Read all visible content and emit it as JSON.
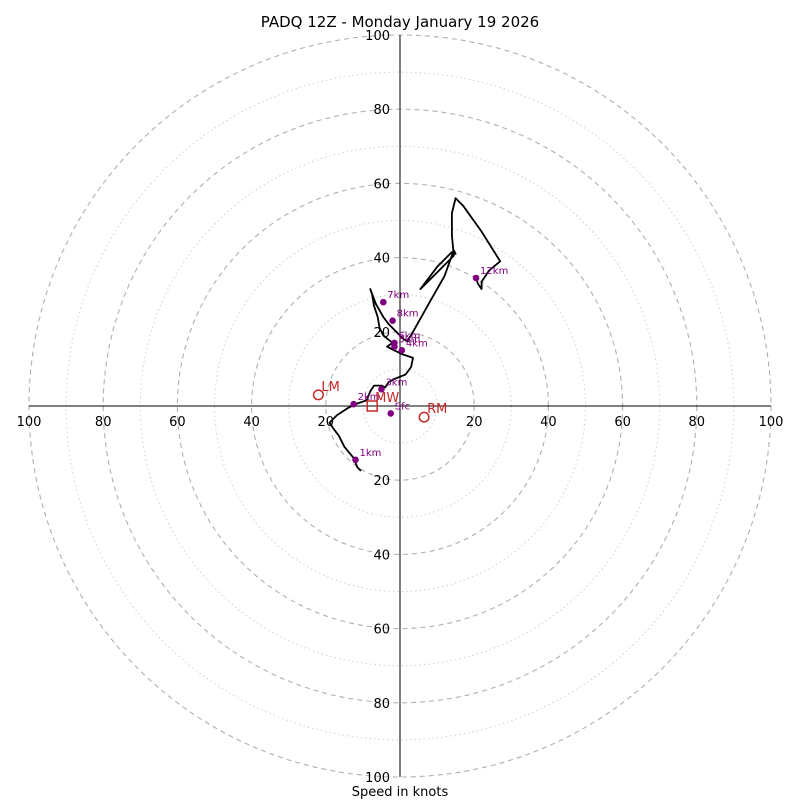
{
  "chart_data": {
    "type": "hodograph",
    "title": "PADQ 12Z - Monday January 19 2026",
    "xlabel": "Speed in knots",
    "units": "knots",
    "max_speed": 100,
    "ring_dashed": [
      20,
      40,
      60,
      80,
      100
    ],
    "ring_dotted": [
      10,
      30,
      50,
      70,
      90
    ],
    "ticks_right": [
      "20",
      "40",
      "60",
      "80",
      "100"
    ],
    "ticks_left": [
      "20",
      "40",
      "60",
      "80",
      "100"
    ],
    "ticks_up": [
      "20",
      "40",
      "60",
      "80",
      "100"
    ],
    "ticks_down": [
      "20",
      "40",
      "60",
      "80",
      "100"
    ],
    "trace": [
      [
        -10.5,
        -17.5
      ],
      [
        -11.5,
        -16.5
      ],
      [
        -12.5,
        -14
      ],
      [
        -15,
        -11
      ],
      [
        -16.5,
        -8
      ],
      [
        -18,
        -6
      ],
      [
        -19,
        -4.5
      ],
      [
        -17,
        -2.5
      ],
      [
        -14,
        -0.5
      ],
      [
        -12,
        0.5
      ],
      [
        -9,
        1.5
      ],
      [
        -8,
        4
      ],
      [
        -7,
        5.5
      ],
      [
        -5,
        5.5
      ],
      [
        -4,
        5
      ],
      [
        -3,
        6.5
      ],
      [
        -1,
        7.5
      ],
      [
        1.5,
        8.5
      ],
      [
        3,
        10.5
      ],
      [
        3.5,
        13
      ],
      [
        0.5,
        14
      ],
      [
        -1.5,
        15
      ],
      [
        -3.5,
        16
      ],
      [
        -2,
        17
      ],
      [
        -4.5,
        19
      ],
      [
        -5.5,
        21
      ],
      [
        -6,
        24
      ],
      [
        -7,
        27
      ],
      [
        -7.5,
        30
      ],
      [
        -8,
        31.5
      ],
      [
        -6.5,
        27.5
      ],
      [
        -4.5,
        24
      ],
      [
        -3,
        22
      ],
      [
        -1.5,
        20.5
      ],
      [
        0,
        19
      ],
      [
        1,
        18
      ],
      [
        2,
        17.5
      ],
      [
        3.5,
        20
      ],
      [
        8,
        28
      ],
      [
        12,
        35
      ],
      [
        14.5,
        42
      ],
      [
        15,
        41
      ],
      [
        14,
        41.5
      ],
      [
        10,
        37.5
      ],
      [
        5.5,
        31.5
      ],
      [
        14.5,
        40.5
      ],
      [
        14,
        46
      ],
      [
        14,
        52
      ],
      [
        15,
        56
      ],
      [
        17,
        54
      ],
      [
        22,
        47
      ],
      [
        27,
        39
      ],
      [
        24,
        36.5
      ],
      [
        22,
        33.5
      ],
      [
        22,
        31.5
      ],
      [
        21,
        33
      ],
      [
        20.5,
        34.5
      ]
    ],
    "height_markers": [
      {
        "label": "Sfc",
        "u": -2.5,
        "v": -2
      },
      {
        "label": "1km",
        "u": -12,
        "v": -14.5
      },
      {
        "label": "2km",
        "u": -12.5,
        "v": 0.5
      },
      {
        "label": "3km",
        "u": -5,
        "v": 4.5
      },
      {
        "label": "4km",
        "u": 0.5,
        "v": 15
      },
      {
        "label": "5km",
        "u": -1.5,
        "v": 16
      },
      {
        "label": "6km",
        "u": -1.5,
        "v": 17
      },
      {
        "label": "7km",
        "u": -4.5,
        "v": 28
      },
      {
        "label": "8km",
        "u": -2,
        "v": 23
      },
      {
        "label": "12km",
        "u": 20.5,
        "v": 34.5
      }
    ],
    "storm_motions": [
      {
        "label": "LM",
        "u": -22,
        "v": 3,
        "shape": "circle"
      },
      {
        "label": "MW",
        "u": -7.5,
        "v": 0,
        "shape": "square"
      },
      {
        "label": "RM",
        "u": 6.5,
        "v": -3,
        "shape": "circle"
      }
    ]
  }
}
